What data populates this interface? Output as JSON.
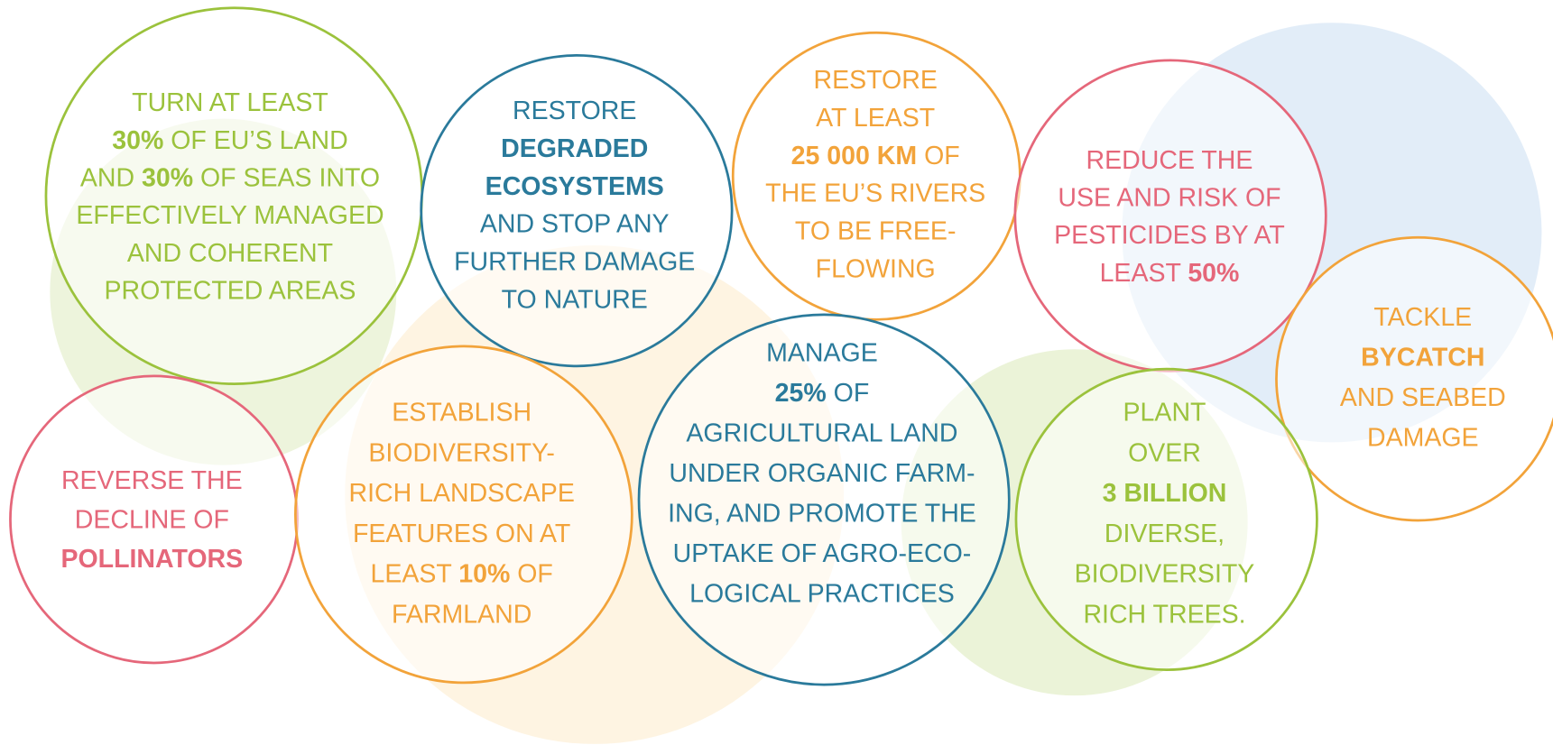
{
  "circles": [
    {
      "color": "#9bc23c",
      "lines": [
        [
          {
            "text": "TURN AT LEAST"
          }
        ],
        [
          {
            "text": "30%",
            "bold": true
          },
          {
            "text": " OF EU’S LAND"
          }
        ],
        [
          {
            "text": "AND "
          },
          {
            "text": "30%",
            "bold": true
          },
          {
            "text": " OF SEAS INTO"
          }
        ],
        [
          {
            "text": "EFFECTIVELY MANAGED"
          }
        ],
        [
          {
            "text": "AND COHERENT"
          }
        ],
        [
          {
            "text": "PROTECTED AREAS"
          }
        ]
      ]
    },
    {
      "color": "#2a7a9b",
      "lines": [
        [
          {
            "text": "RESTORE"
          }
        ],
        [
          {
            "text": "DEGRADED",
            "bold": true
          }
        ],
        [
          {
            "text": "ECOSYSTEMS",
            "bold": true
          }
        ],
        [
          {
            "text": "AND STOP ANY"
          }
        ],
        [
          {
            "text": "FURTHER DAMAGE"
          }
        ],
        [
          {
            "text": "TO NATURE"
          }
        ]
      ]
    },
    {
      "color": "#f2a33a",
      "lines": [
        [
          {
            "text": "RESTORE"
          }
        ],
        [
          {
            "text": "AT LEAST"
          }
        ],
        [
          {
            "text": "25 000 KM",
            "bold": true
          },
          {
            "text": " OF"
          }
        ],
        [
          {
            "text": "THE EU’S RIVERS"
          }
        ],
        [
          {
            "text": "TO BE FREE-"
          }
        ],
        [
          {
            "text": "FLOWING"
          }
        ]
      ]
    },
    {
      "color": "#e5677a",
      "lines": [
        [
          {
            "text": "REDUCE THE"
          }
        ],
        [
          {
            "text": "USE AND RISK OF"
          }
        ],
        [
          {
            "text": "PESTICIDES BY AT"
          }
        ],
        [
          {
            "text": "LEAST "
          },
          {
            "text": "50%",
            "bold": true
          }
        ]
      ]
    },
    {
      "color": "#f2a33a",
      "lines": [
        [
          {
            "text": "TACKLE"
          }
        ],
        [
          {
            "text": "BYCATCH",
            "bold": true
          }
        ],
        [
          {
            "text": "AND SEABED"
          }
        ],
        [
          {
            "text": "DAMAGE"
          }
        ]
      ]
    },
    {
      "color": "#e5677a",
      "lines": [
        [
          {
            "text": "REVERSE THE"
          }
        ],
        [
          {
            "text": "DECLINE OF"
          }
        ],
        [
          {
            "text": "POLLINATORS",
            "bold": true
          }
        ]
      ]
    },
    {
      "color": "#f2a33a",
      "lines": [
        [
          {
            "text": "ESTABLISH"
          }
        ],
        [
          {
            "text": "BIODIVERSITY-"
          }
        ],
        [
          {
            "text": "RICH LANDSCAPE"
          }
        ],
        [
          {
            "text": "FEATURES ON AT"
          }
        ],
        [
          {
            "text": "LEAST "
          },
          {
            "text": "10%",
            "bold": true
          },
          {
            "text": " OF"
          }
        ],
        [
          {
            "text": "FARMLAND"
          }
        ]
      ]
    },
    {
      "color": "#2a7a9b",
      "lines": [
        [
          {
            "text": "MANAGE"
          }
        ],
        [
          {
            "text": "25%",
            "bold": true
          },
          {
            "text": " OF"
          }
        ],
        [
          {
            "text": "AGRICULTURAL LAND"
          }
        ],
        [
          {
            "text": "UNDER ORGANIC FARM-"
          }
        ],
        [
          {
            "text": "ING, AND PROMOTE THE"
          }
        ],
        [
          {
            "text": "UPTAKE OF AGRO-ECO-"
          }
        ],
        [
          {
            "text": "LOGICAL PRACTICES"
          }
        ]
      ]
    },
    {
      "color": "#9bc23c",
      "lines": [
        [
          {
            "text": "PLANT"
          }
        ],
        [
          {
            "text": "OVER"
          }
        ],
        [
          {
            "text": "3 BILLION",
            "bold": true
          }
        ],
        [
          {
            "text": "DIVERSE,"
          }
        ],
        [
          {
            "text": "BIODIVERSITY"
          }
        ],
        [
          {
            "text": "RICH TREES."
          }
        ]
      ]
    }
  ]
}
